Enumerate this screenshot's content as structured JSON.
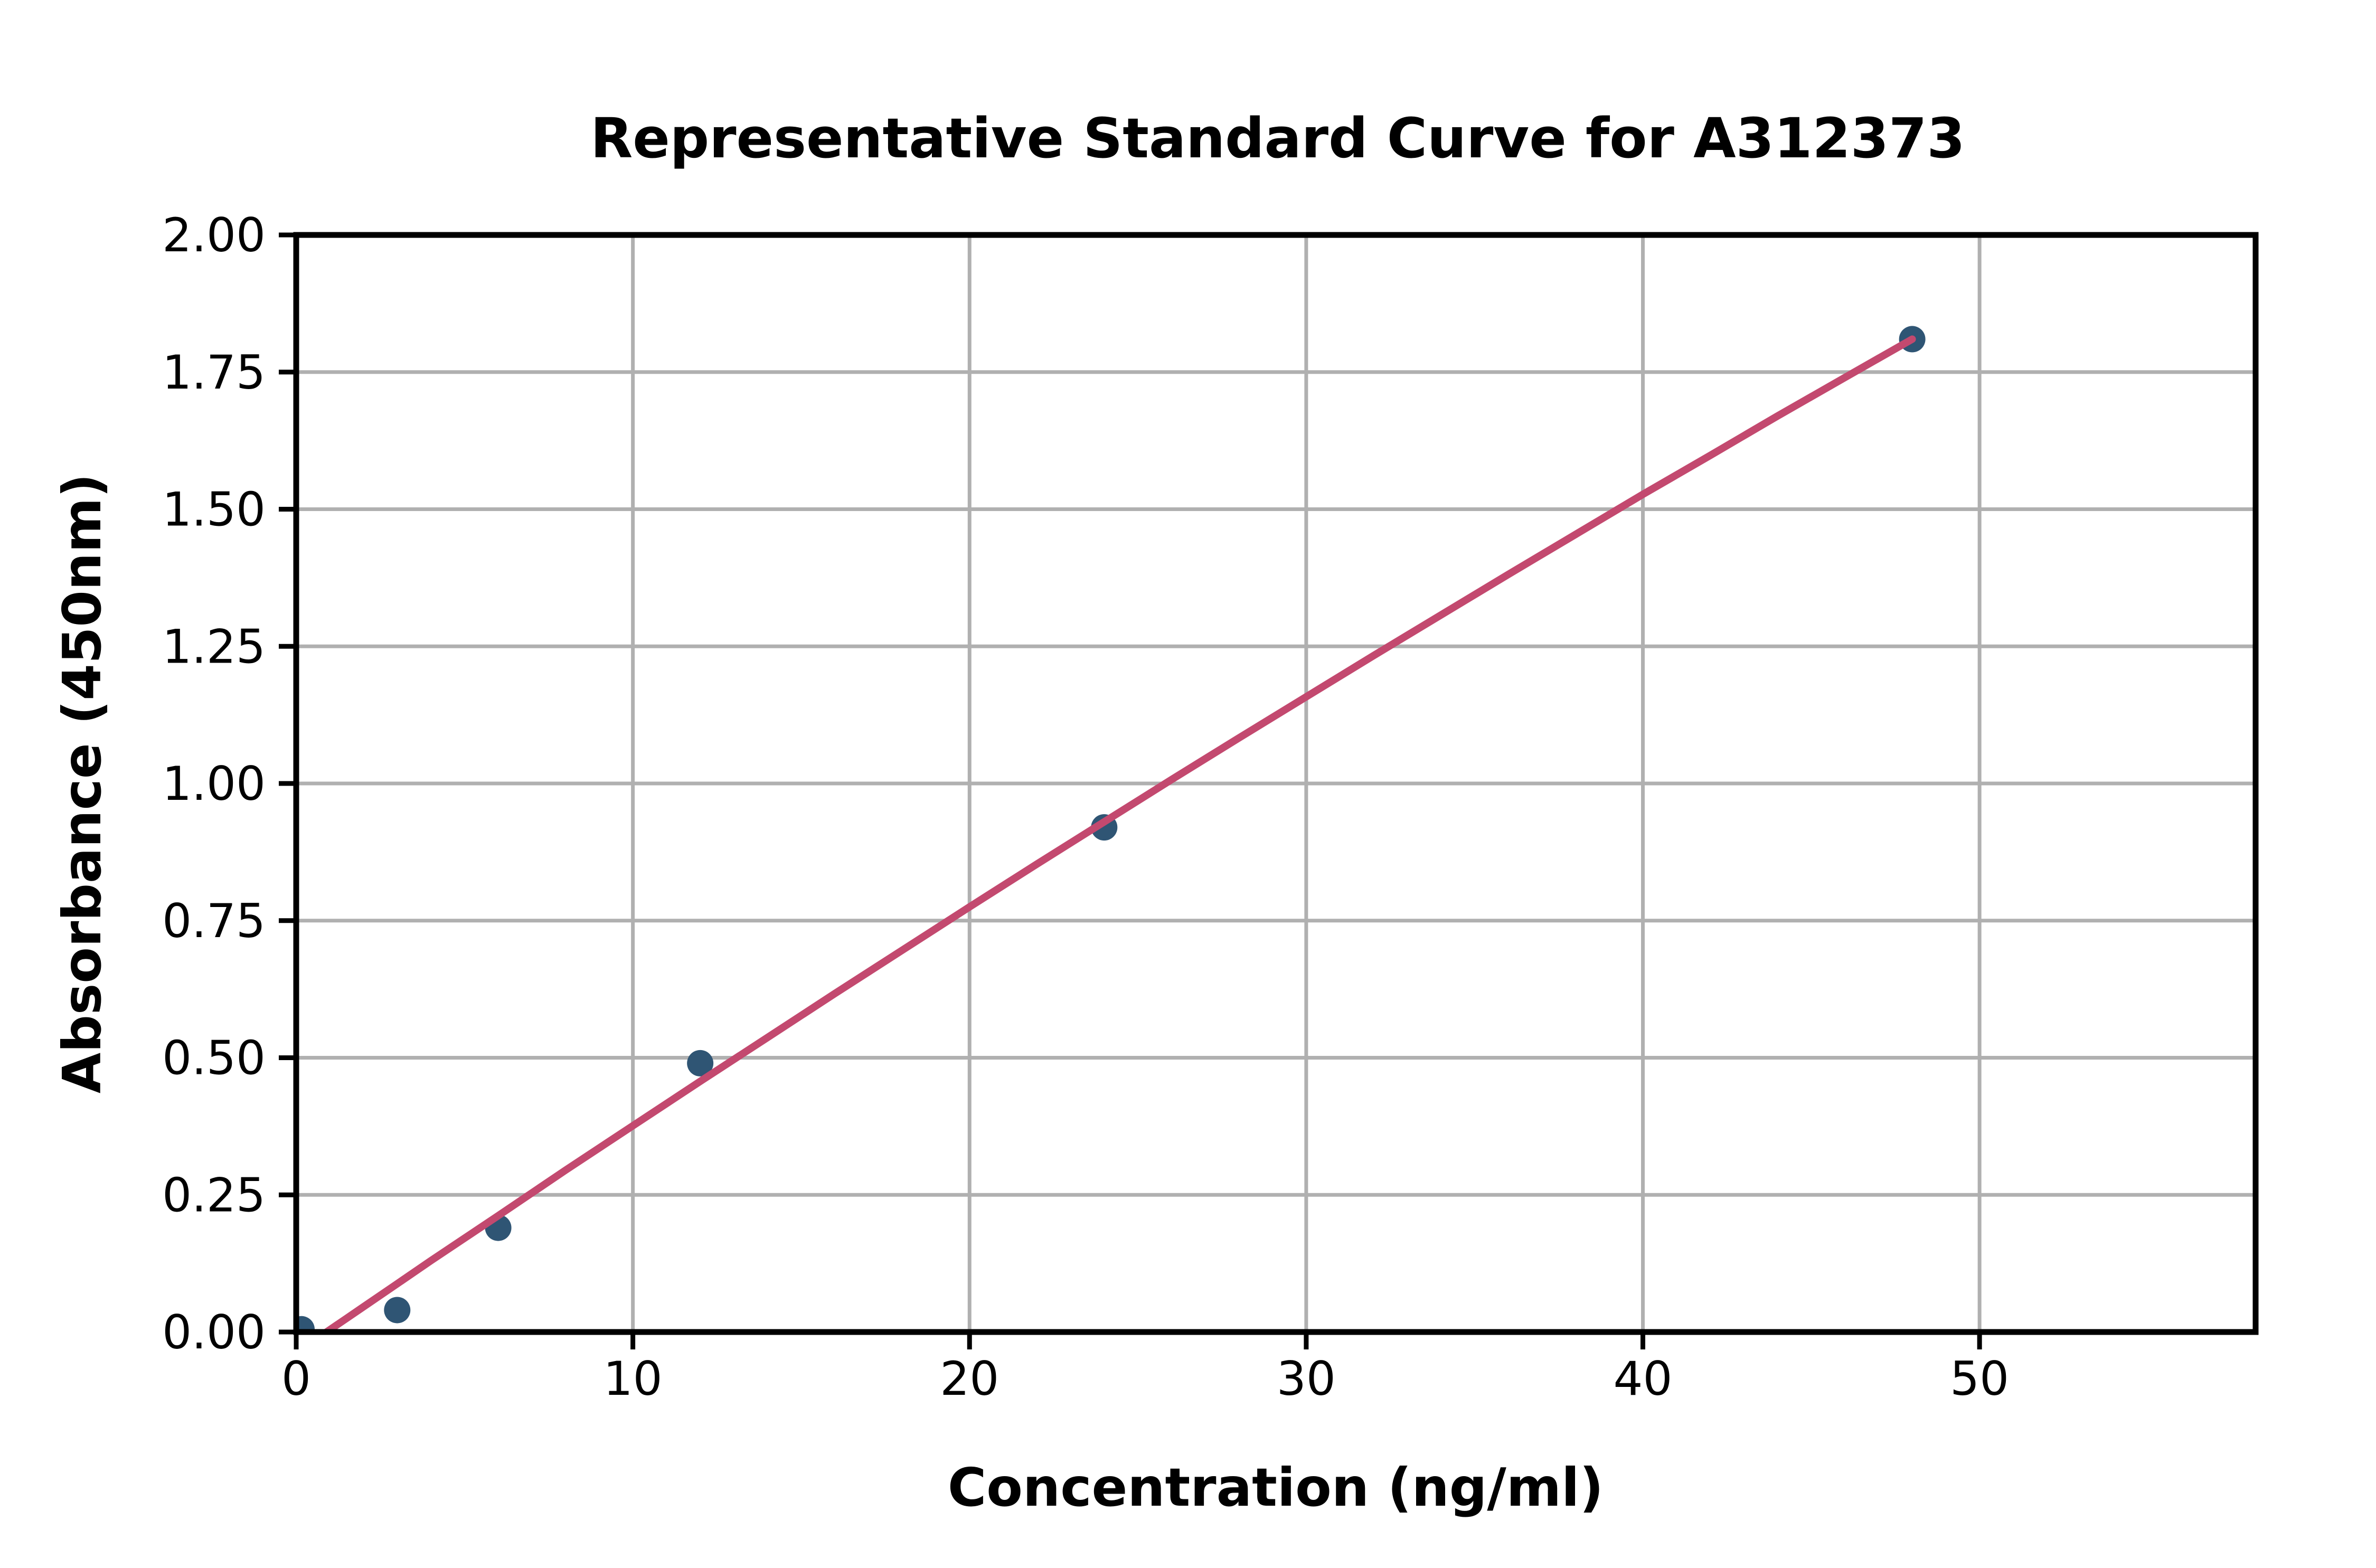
{
  "page": {
    "background": "#FFFFFF"
  },
  "chart_data": {
    "type": "scatter",
    "title": "Representative Standard Curve for A312373",
    "xlabel": "Concentration (ng/ml)",
    "ylabel": "Absorbance (450nm)",
    "xlim": [
      0,
      58.2
    ],
    "ylim": [
      0,
      2.0
    ],
    "x_ticks": {
      "values": [
        0,
        10,
        20,
        30,
        40,
        50
      ],
      "labels": [
        "0",
        "10",
        "20",
        "30",
        "40",
        "50"
      ]
    },
    "y_ticks": {
      "values": [
        0.0,
        0.25,
        0.5,
        0.75,
        1.0,
        1.25,
        1.5,
        1.75,
        2.0
      ],
      "labels": [
        "0.00",
        "0.25",
        "0.50",
        "0.75",
        "1.00",
        "1.25",
        "1.50",
        "1.75",
        "2.00"
      ]
    },
    "grid": true,
    "legend": "none",
    "series": [
      {
        "name": "standards",
        "plot": "scatter",
        "x": [
          0,
          3,
          6,
          12,
          24,
          48
        ],
        "y": [
          0.005,
          0.04,
          0.19,
          0.49,
          0.92,
          1.81
        ],
        "color": "#2F5574"
      },
      {
        "name": "fit_curve",
        "plot": "line",
        "x": [
          0.9,
          1.5,
          2,
          3,
          4,
          5,
          6,
          8,
          10,
          12,
          14,
          16,
          18,
          20,
          22,
          24,
          26,
          28,
          30,
          32,
          34,
          36,
          38,
          40,
          42,
          44,
          46,
          48
        ],
        "y": [
          0.0,
          0.025,
          0.046,
          0.088,
          0.13,
          0.171,
          0.212,
          0.295,
          0.376,
          0.457,
          0.537,
          0.617,
          0.696,
          0.775,
          0.853,
          0.93,
          1.007,
          1.083,
          1.158,
          1.233,
          1.307,
          1.381,
          1.454,
          1.527,
          1.598,
          1.67,
          1.74,
          1.81
        ],
        "color": "#C3496F"
      }
    ],
    "colors": {
      "grid": "#B0B0B0",
      "axis": "#000000",
      "text": "#000000",
      "background": "#FFFFFF"
    },
    "layout": {
      "plot_left": 561,
      "plot_right": 4272,
      "plot_top": 445,
      "plot_bottom": 2523,
      "legend_position": "none"
    }
  }
}
